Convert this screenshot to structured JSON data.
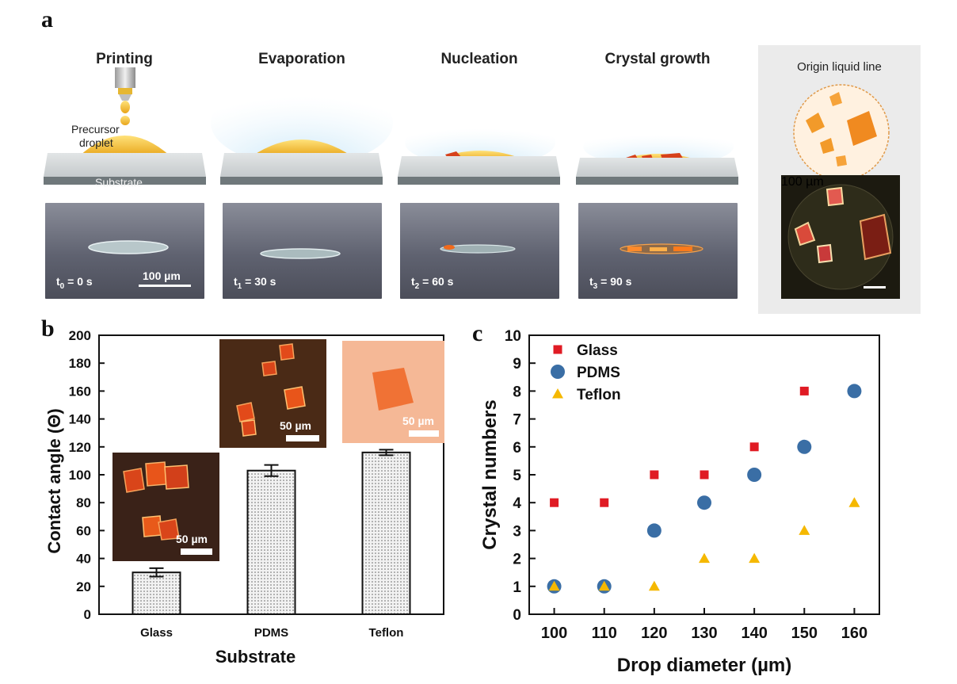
{
  "panel_a": {
    "letter": "a",
    "steps": [
      {
        "title": "Printing",
        "time": "t0 = 0 s",
        "time_sub": "0",
        "time_rest": " = 0 s"
      },
      {
        "title": "Evaporation",
        "time": "t1 = 30 s",
        "time_sub": "1",
        "time_rest": " = 30 s"
      },
      {
        "title": "Nucleation",
        "time": "t2 = 60 s",
        "time_sub": "2",
        "time_rest": " = 60 s"
      },
      {
        "title": "Crystal growth",
        "time": "t3 = 90 s",
        "time_sub": "3",
        "time_rest": " = 90 s"
      }
    ],
    "precursor_label_1": "Precursor",
    "precursor_label_2": "droplet",
    "substrate_label": "Substrate",
    "scale_bar_label": "100 µm",
    "side_panel": {
      "title": "Origin liquid line",
      "scale_bar_label": "100 µm"
    }
  },
  "panel_b": {
    "letter": "b",
    "inset_scale_label": "50 µm"
  },
  "panel_c": {
    "letter": "c"
  },
  "chart_data": [
    {
      "type": "bar",
      "title": "",
      "xlabel": "Substrate",
      "ylabel": "Contact angle (Θ)",
      "categories": [
        "Glass",
        "PDMS",
        "Teflon"
      ],
      "values": [
        30,
        103,
        116
      ],
      "errors": [
        3,
        4,
        2
      ],
      "ylim": [
        0,
        200
      ],
      "yticks": [
        0,
        20,
        40,
        60,
        80,
        100,
        120,
        140,
        160,
        180,
        200
      ]
    },
    {
      "type": "scatter",
      "title": "",
      "xlabel": "Drop diameter (µm)",
      "ylabel": "Crystal numbers",
      "xlim": [
        95,
        165
      ],
      "ylim": [
        0,
        10
      ],
      "xticks": [
        100,
        110,
        120,
        130,
        140,
        150,
        160
      ],
      "yticks": [
        0,
        1,
        2,
        3,
        4,
        5,
        6,
        7,
        8,
        9,
        10
      ],
      "legend_position": "top-left",
      "x": [
        100,
        110,
        120,
        130,
        140,
        150,
        160
      ],
      "series": [
        {
          "name": "Glass",
          "marker": "square",
          "color": "#e01b24",
          "values": [
            4,
            4,
            5,
            5,
            6,
            8,
            null
          ]
        },
        {
          "name": "PDMS",
          "marker": "circle",
          "color": "#3a6ea5",
          "values": [
            1,
            1,
            3,
            4,
            5,
            6,
            8
          ]
        },
        {
          "name": "Teflon",
          "marker": "triangle",
          "color": "#f5b800",
          "values": [
            1,
            1,
            1,
            2,
            2,
            3,
            4
          ]
        }
      ]
    }
  ]
}
